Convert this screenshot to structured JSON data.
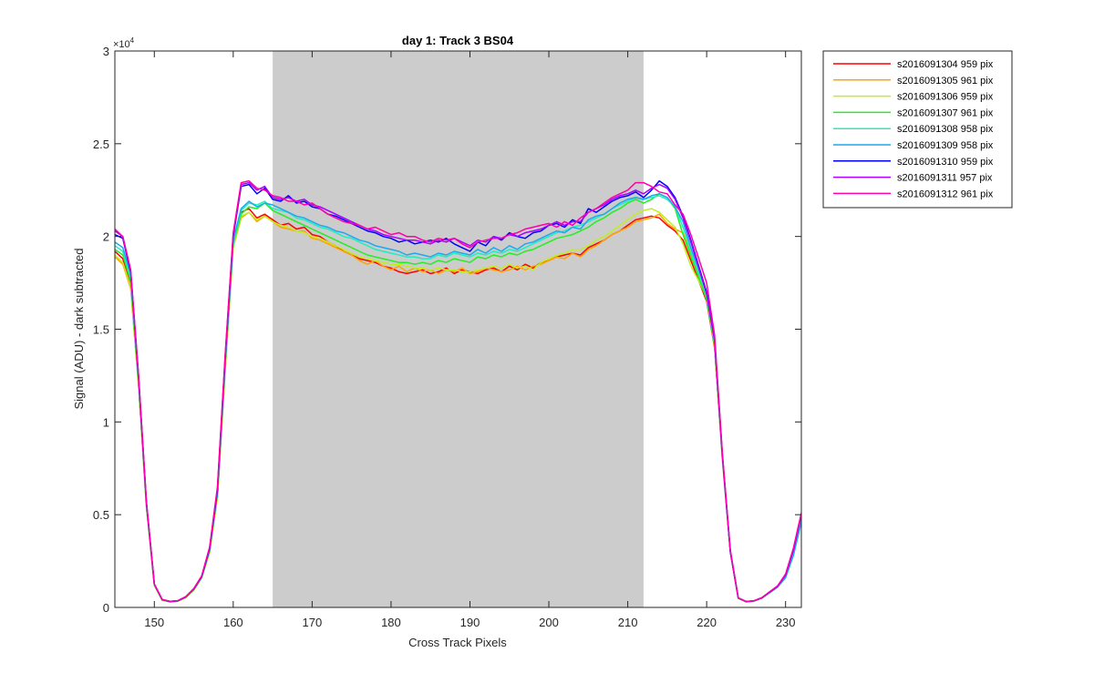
{
  "chart_data": {
    "type": "line",
    "title": "day 1: Track 3  BS04",
    "xlabel": "Cross Track Pixels",
    "ylabel": "Signal (ADU) - dark subtracted",
    "y_exponent_label": "×10",
    "y_exponent_power": "4",
    "xlim": [
      145,
      232
    ],
    "ylim": [
      0,
      30000
    ],
    "xticks": [
      150,
      160,
      170,
      180,
      190,
      200,
      210,
      220,
      230
    ],
    "xtick_labels": [
      "150",
      "160",
      "170",
      "180",
      "190",
      "200",
      "210",
      "220",
      "230"
    ],
    "yticks": [
      0,
      5000,
      10000,
      15000,
      20000,
      25000,
      30000
    ],
    "ytick_labels": [
      "0",
      "0.5",
      "1",
      "1.5",
      "2",
      "2.5",
      "3"
    ],
    "shaded_region": {
      "x_start": 165,
      "x_end": 212,
      "color": "#cccccc"
    },
    "grid": false,
    "legend_position": "outside-top-right",
    "x": [
      145,
      146,
      147,
      148,
      149,
      150,
      151,
      152,
      153,
      154,
      155,
      156,
      157,
      158,
      159,
      160,
      161,
      162,
      163,
      164,
      165,
      166,
      167,
      168,
      169,
      170,
      171,
      172,
      173,
      174,
      175,
      176,
      177,
      178,
      179,
      180,
      181,
      182,
      183,
      184,
      185,
      186,
      187,
      188,
      189,
      190,
      191,
      192,
      193,
      194,
      195,
      196,
      197,
      198,
      199,
      200,
      201,
      202,
      203,
      204,
      205,
      206,
      207,
      208,
      209,
      210,
      211,
      212,
      213,
      214,
      215,
      216,
      217,
      218,
      219,
      220,
      221,
      222,
      223,
      224,
      225,
      226,
      227,
      228,
      229,
      230,
      231,
      232
    ],
    "series": [
      {
        "name": "s2016091304 959 pix",
        "color": "#ff0000",
        "values": [
          19200,
          18800,
          17400,
          12000,
          5500,
          1200,
          400,
          300,
          350,
          550,
          950,
          1600,
          3000,
          6000,
          13000,
          19500,
          21300,
          21500,
          21000,
          21200,
          20900,
          20600,
          20700,
          20400,
          20500,
          20100,
          20000,
          19700,
          19500,
          19200,
          19000,
          18800,
          18700,
          18600,
          18400,
          18300,
          18100,
          18000,
          18100,
          18200,
          18000,
          18100,
          18300,
          18000,
          18200,
          18100,
          18000,
          18200,
          18300,
          18100,
          18400,
          18200,
          18500,
          18300,
          18600,
          18700,
          18900,
          19000,
          19100,
          19000,
          19400,
          19600,
          19800,
          20100,
          20300,
          20600,
          20900,
          21000,
          21100,
          21000,
          20600,
          20300,
          19800,
          18700,
          17600,
          16500,
          14000,
          8000,
          3000,
          500,
          300,
          350,
          500,
          800,
          1100,
          1700,
          3000,
          4900
        ]
      },
      {
        "name": "s2016091305 961 pix",
        "color": "#ffa500",
        "values": [
          18900,
          18500,
          17200,
          11900,
          5400,
          1200,
          380,
          300,
          340,
          530,
          930,
          1580,
          2950,
          5900,
          12900,
          19400,
          21000,
          21300,
          20800,
          21100,
          20800,
          20500,
          20400,
          20300,
          20300,
          19900,
          19800,
          19600,
          19400,
          19200,
          19000,
          18700,
          18500,
          18700,
          18400,
          18200,
          18400,
          18100,
          18300,
          18100,
          18200,
          18000,
          18200,
          18100,
          18300,
          18000,
          18100,
          18300,
          18200,
          18100,
          18200,
          18400,
          18200,
          18400,
          18500,
          18700,
          18900,
          18800,
          19100,
          18900,
          19300,
          19500,
          19800,
          20100,
          20300,
          20500,
          20800,
          20900,
          21000,
          21200,
          20700,
          20400,
          20200,
          19100,
          17800,
          16600,
          14100,
          8000,
          3000,
          480,
          300,
          340,
          500,
          800,
          1100,
          1700,
          3000,
          4900
        ]
      },
      {
        "name": "s2016091306 959 pix",
        "color": "#bfef1f",
        "values": [
          19000,
          18600,
          17300,
          12000,
          5450,
          1200,
          390,
          300,
          345,
          540,
          940,
          1590,
          2980,
          5950,
          13000,
          19450,
          21100,
          21300,
          20900,
          21100,
          20800,
          20600,
          20500,
          20300,
          20200,
          20000,
          19900,
          19700,
          19500,
          19300,
          19100,
          18900,
          18800,
          18700,
          18600,
          18500,
          18500,
          18400,
          18300,
          18300,
          18200,
          18300,
          18200,
          18200,
          18100,
          18100,
          18200,
          18300,
          18400,
          18300,
          18500,
          18300,
          18400,
          18200,
          18600,
          18800,
          19000,
          19100,
          19300,
          19300,
          19500,
          19800,
          20000,
          20300,
          20600,
          20900,
          21200,
          21400,
          21500,
          21300,
          20900,
          20500,
          19600,
          18400,
          17600,
          16700,
          14100,
          8000,
          3000,
          490,
          310,
          345,
          510,
          810,
          1100,
          1700,
          3000,
          4900
        ]
      },
      {
        "name": "s2016091307 961 pix",
        "color": "#22ee22",
        "values": [
          19300,
          19000,
          17600,
          12100,
          5500,
          1220,
          400,
          310,
          350,
          550,
          960,
          1600,
          3050,
          6100,
          13200,
          19600,
          21200,
          21600,
          21500,
          21800,
          21400,
          21200,
          21000,
          20800,
          20600,
          20400,
          20200,
          20000,
          19800,
          19600,
          19400,
          19200,
          19000,
          18900,
          18800,
          18700,
          18600,
          18600,
          18500,
          18600,
          18500,
          18700,
          18600,
          18800,
          18700,
          18600,
          18900,
          18800,
          19000,
          18900,
          19100,
          19000,
          19200,
          19300,
          19500,
          19700,
          19900,
          20000,
          20100,
          20300,
          20500,
          20800,
          21000,
          21300,
          21500,
          21800,
          22000,
          21800,
          22000,
          22300,
          22100,
          21500,
          20100,
          18900,
          17800,
          16600,
          14200,
          8100,
          3000,
          500,
          310,
          350,
          510,
          820,
          1120,
          1700,
          3000,
          4900
        ]
      },
      {
        "name": "s2016091308 958 pix",
        "color": "#1fefbf",
        "values": [
          19500,
          19200,
          17800,
          12200,
          5550,
          1230,
          400,
          310,
          355,
          560,
          970,
          1620,
          3080,
          6150,
          13300,
          19700,
          21400,
          21800,
          21700,
          21900,
          21500,
          21400,
          21300,
          21000,
          20900,
          20700,
          20500,
          20400,
          20200,
          20000,
          19900,
          19700,
          19500,
          19300,
          19200,
          19100,
          19000,
          18900,
          18900,
          18800,
          18800,
          19000,
          18900,
          19100,
          19000,
          18900,
          19100,
          19000,
          19200,
          19100,
          19300,
          19200,
          19400,
          19600,
          19800,
          20000,
          20200,
          20300,
          20500,
          20600,
          20800,
          21000,
          21200,
          21500,
          21700,
          21900,
          22100,
          22000,
          22100,
          22200,
          22000,
          21600,
          20500,
          19200,
          18000,
          16800,
          14300,
          8100,
          3000,
          500,
          310,
          350,
          510,
          820,
          1120,
          1700,
          3000,
          4800
        ]
      },
      {
        "name": "s2016091309 958 pix",
        "color": "#1fa7ef",
        "values": [
          19700,
          19400,
          18000,
          12300,
          5600,
          1240,
          410,
          310,
          360,
          570,
          980,
          1640,
          3100,
          6200,
          13400,
          19800,
          21500,
          21900,
          21600,
          21800,
          21700,
          21500,
          21300,
          21100,
          21000,
          20800,
          20600,
          20500,
          20300,
          20200,
          20000,
          19800,
          19700,
          19500,
          19400,
          19300,
          19200,
          19000,
          19100,
          19000,
          18900,
          19100,
          19000,
          19200,
          19100,
          19000,
          19300,
          19100,
          19400,
          19200,
          19500,
          19300,
          19600,
          19700,
          19900,
          20100,
          20300,
          20200,
          20500,
          20400,
          20900,
          21100,
          21200,
          21500,
          21800,
          22000,
          22100,
          22000,
          22200,
          22300,
          22100,
          21600,
          20800,
          19400,
          18200,
          17000,
          14400,
          8100,
          3000,
          500,
          310,
          350,
          500,
          800,
          1100,
          1600,
          2800,
          4600
        ]
      },
      {
        "name": "s2016091310 959 pix",
        "color": "#0000ff",
        "values": [
          20100,
          19900,
          18100,
          12400,
          5650,
          1250,
          420,
          320,
          360,
          570,
          990,
          1660,
          3150,
          6300,
          13600,
          20000,
          22700,
          22800,
          22300,
          22600,
          22000,
          21900,
          22200,
          21800,
          21900,
          21600,
          21500,
          21200,
          21100,
          20900,
          20700,
          20500,
          20300,
          20200,
          20000,
          19900,
          19700,
          19800,
          19600,
          19700,
          19800,
          19700,
          19900,
          19600,
          19400,
          19200,
          19700,
          19500,
          20000,
          19800,
          20200,
          20000,
          19900,
          20200,
          20300,
          20600,
          20700,
          20500,
          20900,
          20700,
          21500,
          21300,
          21600,
          21900,
          22100,
          22200,
          22400,
          22100,
          22500,
          23000,
          22700,
          22100,
          21100,
          19800,
          18400,
          17000,
          14500,
          8200,
          3000,
          510,
          320,
          360,
          520,
          840,
          1150,
          1750,
          3100,
          5000
        ]
      },
      {
        "name": "s2016091311 957 pix",
        "color": "#aa00ff",
        "values": [
          20300,
          20000,
          18200,
          12500,
          5700,
          1260,
          420,
          320,
          365,
          580,
          1000,
          1680,
          3200,
          6400,
          13700,
          20100,
          22800,
          22900,
          22500,
          22700,
          22100,
          22000,
          22100,
          21900,
          22000,
          21700,
          21600,
          21400,
          21200,
          21000,
          20800,
          20600,
          20400,
          20300,
          20100,
          20000,
          19900,
          19800,
          19800,
          19700,
          19600,
          19800,
          19700,
          19900,
          19700,
          19500,
          19800,
          19700,
          20000,
          19900,
          20100,
          20000,
          20200,
          20300,
          20400,
          20600,
          20800,
          20600,
          20800,
          20800,
          21300,
          21500,
          21700,
          22000,
          22200,
          22300,
          22500,
          22300,
          22600,
          22800,
          22600,
          22000,
          21000,
          19700,
          18300,
          16900,
          14400,
          8200,
          3000,
          510,
          320,
          360,
          520,
          840,
          1150,
          1750,
          3100,
          5000
        ]
      },
      {
        "name": "s2016091312 961 pix",
        "color": "#ff00aa",
        "values": [
          20400,
          20000,
          18200,
          12500,
          5700,
          1260,
          430,
          330,
          370,
          590,
          1020,
          1700,
          3250,
          6500,
          13800,
          20200,
          22900,
          23000,
          22600,
          22500,
          22200,
          22100,
          21900,
          21900,
          21700,
          21800,
          21500,
          21200,
          21000,
          20800,
          20700,
          20600,
          20400,
          20500,
          20300,
          20100,
          20200,
          20000,
          20000,
          19800,
          19700,
          19900,
          19800,
          19900,
          19600,
          19400,
          19700,
          19800,
          19900,
          19900,
          20100,
          20200,
          20400,
          20500,
          20600,
          20700,
          20500,
          20800,
          20600,
          21000,
          21300,
          21500,
          21800,
          22100,
          22300,
          22500,
          22900,
          22900,
          22700,
          22400,
          22300,
          21700,
          21200,
          20100,
          18800,
          17500,
          14700,
          8300,
          3100,
          520,
          320,
          360,
          530,
          850,
          1170,
          1800,
          3200,
          5100
        ]
      }
    ]
  }
}
